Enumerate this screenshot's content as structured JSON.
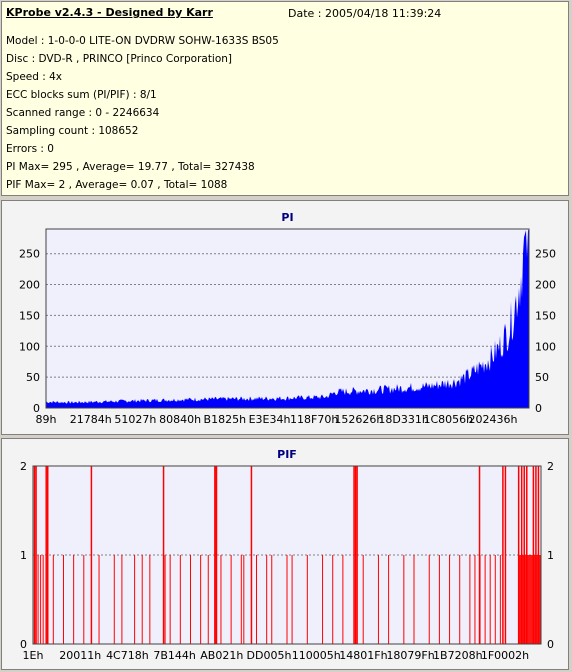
{
  "info": {
    "title": "KProbe v2.4.3 - Designed by Karr",
    "date": "Date : 2005/04/18 11:39:24",
    "lines": [
      "Model : 1-0-0-0 LITE-ON DVDRW SOHW-1633S BS05",
      "Disc : DVD-R , PRINCO [Princo Corporation]",
      "Speed : 4x",
      "ECC blocks sum (PI/PIF) : 8/1",
      "Scanned range : 0 - 2246634",
      "Sampling count : 108652",
      "Errors : 0",
      "PI Max= 295 , Average= 19.77 , Total= 327438",
      "PIF Max= 2 , Average= 0.07 , Total= 1088"
    ]
  },
  "chart_data": [
    {
      "type": "area",
      "title": "PI",
      "color": "#0000ff",
      "ylim": [
        0,
        290
      ],
      "yticks": [
        0,
        50,
        100,
        150,
        200,
        250
      ],
      "xtick_labels": [
        "89h",
        "21784h",
        "51027h",
        "80840h",
        "B1825h",
        "E3E34h",
        "118F70h",
        "152626h",
        "18D331h",
        "1C8056h",
        "202436h"
      ],
      "profile": {
        "x_fraction": [
          0.0,
          0.05,
          0.1,
          0.2,
          0.3,
          0.4,
          0.5,
          0.58,
          0.6,
          0.65,
          0.7,
          0.75,
          0.8,
          0.85,
          0.88,
          0.9,
          0.92,
          0.94,
          0.96,
          0.97,
          0.98,
          0.99,
          1.0
        ],
        "y": [
          10,
          9,
          10,
          12,
          14,
          15,
          16,
          18,
          26,
          28,
          30,
          33,
          36,
          43,
          55,
          68,
          80,
          100,
          130,
          160,
          200,
          240,
          270
        ]
      },
      "max_value": 295
    },
    {
      "type": "bar",
      "title": "PIF",
      "color": "#ff0000",
      "ylim": [
        0,
        2
      ],
      "yticks": [
        0,
        1,
        2
      ],
      "xtick_labels": [
        "1Eh",
        "20011h",
        "4C718h",
        "7B144h",
        "AB021h",
        "DD005h",
        "110005h",
        "14801Fh",
        "18079Fh",
        "1B7208h",
        "1F0002h"
      ],
      "spikes_level2_x_fraction": [
        0.003,
        0.006,
        0.026,
        0.029,
        0.115,
        0.257,
        0.358,
        0.361,
        0.361,
        0.43,
        0.632,
        0.635,
        0.638,
        0.879,
        0.925,
        0.93,
        0.956,
        0.962,
        0.967,
        0.972,
        0.985,
        0.99,
        0.995
      ],
      "spikes_level1_x_fraction": [
        0.01,
        0.015,
        0.02,
        0.04,
        0.06,
        0.08,
        0.1,
        0.13,
        0.16,
        0.175,
        0.2,
        0.215,
        0.23,
        0.26,
        0.27,
        0.29,
        0.31,
        0.33,
        0.345,
        0.37,
        0.39,
        0.41,
        0.415,
        0.44,
        0.46,
        0.47,
        0.5,
        0.51,
        0.54,
        0.57,
        0.59,
        0.61,
        0.65,
        0.68,
        0.7,
        0.73,
        0.75,
        0.78,
        0.8,
        0.82,
        0.84,
        0.86,
        0.87,
        0.88,
        0.89,
        0.9,
        0.91,
        0.92
      ]
    }
  ]
}
